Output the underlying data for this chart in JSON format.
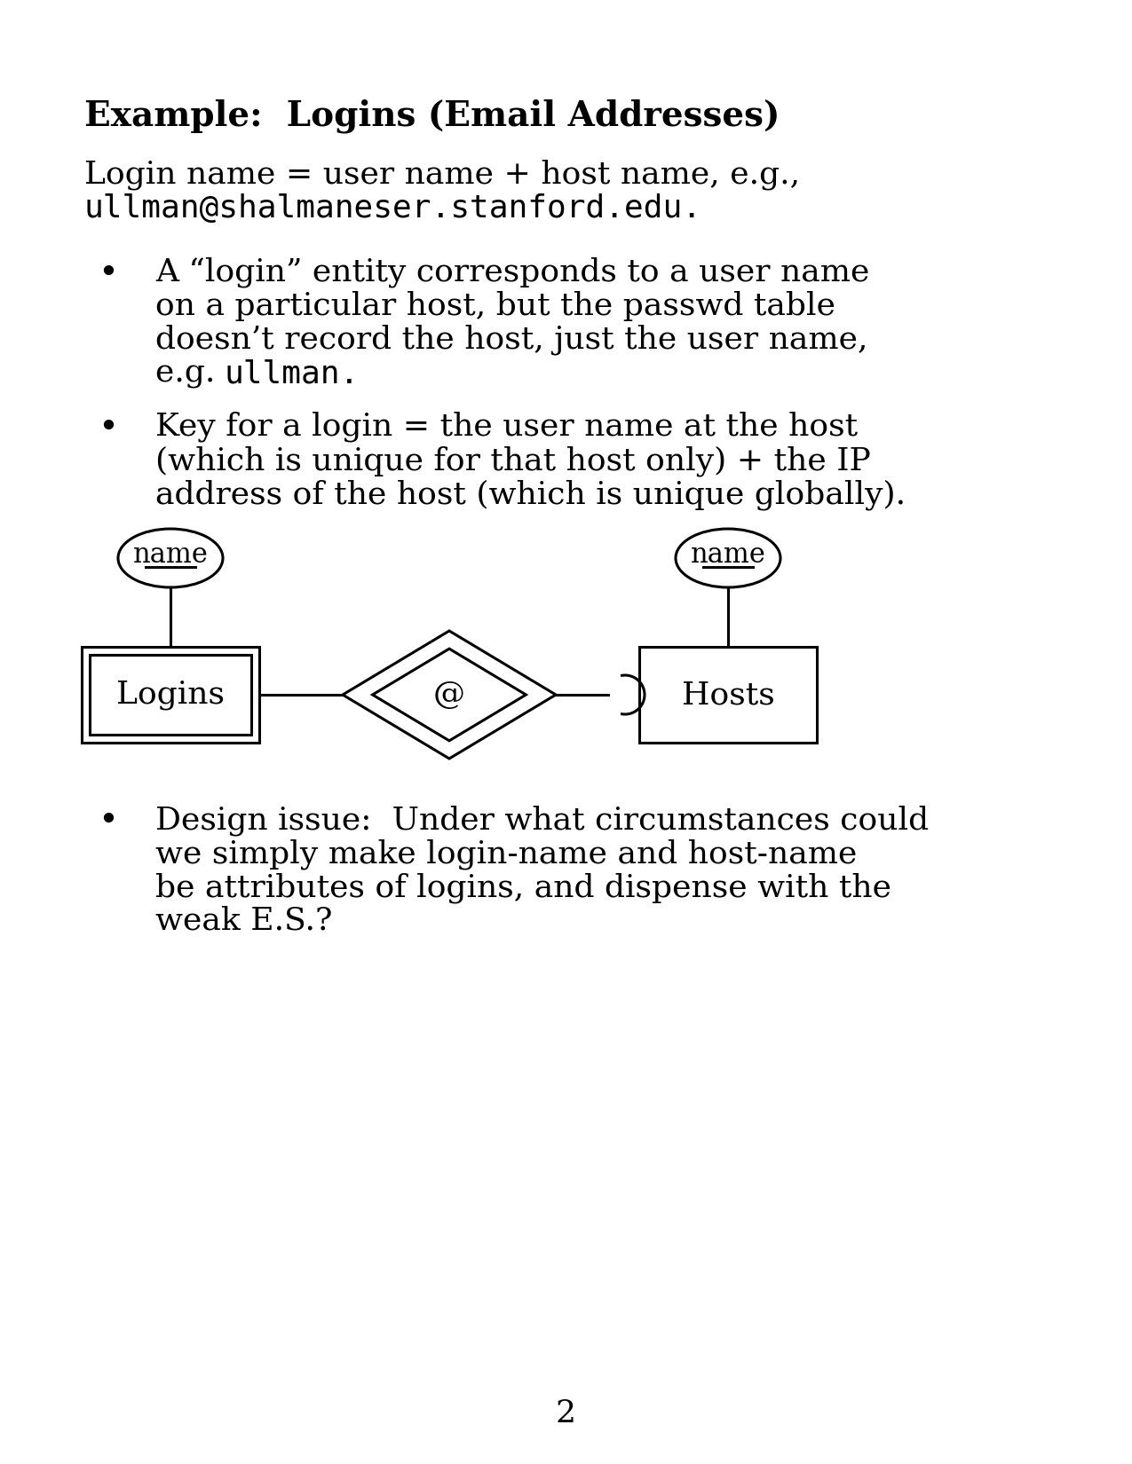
{
  "title": "Example:  Logins (Email Addresses)",
  "bg_color": "#ffffff",
  "text_color": "#000000",
  "line1": "Login name = user name + host name, e.g.,",
  "line2": "ullman@shalmaneser.stanford.edu.",
  "bullet1_part1": "A “login” entity corresponds to a user name",
  "bullet1_part2": "on a particular host, but the passwd table",
  "bullet1_part3": "doesn’t record the host, just the user name,",
  "bullet1_part4": "e.g. ",
  "bullet1_mono": "ullman",
  "bullet1_part4_end": ".",
  "bullet2_part1": "Key for a login = the user name at the host",
  "bullet2_part2": "(which is unique for that host only) + the IP",
  "bullet2_part3": "address of the host (which is unique globally).",
  "bullet3_part1": "Design issue:  Under what circumstances could",
  "bullet3_part2": "we simply make login-name and host-name",
  "bullet3_part3": "be attributes of logins, and dispense with the",
  "bullet3_part4": "weak E.S.?",
  "page_number": "2",
  "font_size_title": 28,
  "font_size_body": 26,
  "font_size_mono": 26,
  "lw": 2.2
}
